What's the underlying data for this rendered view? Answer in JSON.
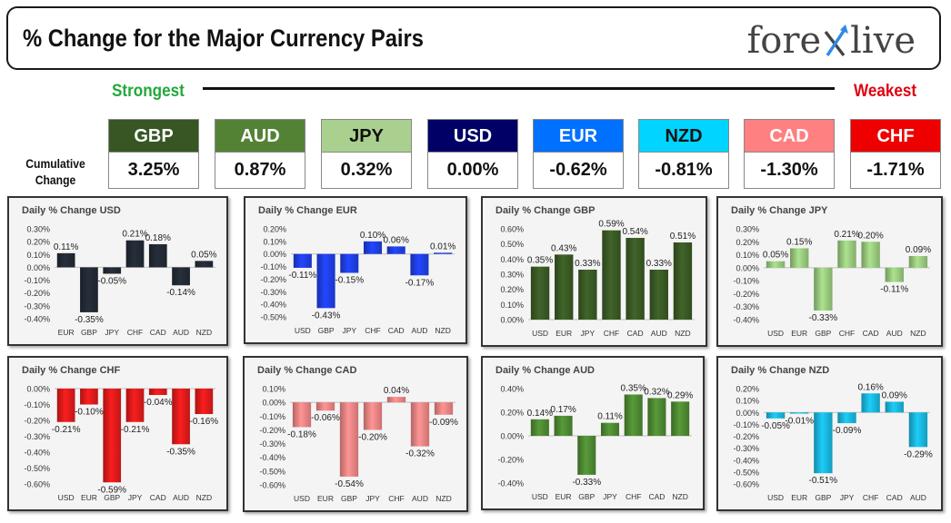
{
  "header": {
    "title": "% Change for the Major Currency Pairs",
    "logo": {
      "left": "fore",
      "right": "live"
    }
  },
  "scale": {
    "strongest_label": "Strongest",
    "weakest_label": "Weakest"
  },
  "cumulative": {
    "label_line1": "Cumulative",
    "label_line2": "Change",
    "items": [
      {
        "ccy": "GBP",
        "value": "3.25%",
        "head_bg": "#375623",
        "head_fg": "#ffffff"
      },
      {
        "ccy": "AUD",
        "value": "0.87%",
        "head_bg": "#548235",
        "head_fg": "#ffffff"
      },
      {
        "ccy": "JPY",
        "value": "0.32%",
        "head_bg": "#a9d08e",
        "head_fg": "#111111"
      },
      {
        "ccy": "USD",
        "value": "0.00%",
        "head_bg": "#000066",
        "head_fg": "#ffffff"
      },
      {
        "ccy": "EUR",
        "value": "-0.62%",
        "head_bg": "#0070ff",
        "head_fg": "#ffffff"
      },
      {
        "ccy": "NZD",
        "value": "-0.81%",
        "head_bg": "#00d4ff",
        "head_fg": "#111111"
      },
      {
        "ccy": "CAD",
        "value": "-1.30%",
        "head_bg": "#ff8080",
        "head_fg": "#ffffff"
      },
      {
        "ccy": "CHF",
        "value": "-1.71%",
        "head_bg": "#ee0000",
        "head_fg": "#ffffff"
      }
    ]
  },
  "chart_data": [
    {
      "type": "bar",
      "title": "Daily % Change USD",
      "color": "#222a35",
      "categories": [
        "EUR",
        "GBP",
        "JPY",
        "CHF",
        "CAD",
        "AUD",
        "NZD"
      ],
      "values": [
        0.11,
        -0.35,
        -0.05,
        0.21,
        0.18,
        -0.14,
        0.05
      ],
      "labels": [
        "0.11%",
        "-0.35%",
        "-0.05%",
        "0.21%",
        "0.18%",
        "-0.14%",
        "0.05%"
      ],
      "ylim": [
        -0.4,
        0.3
      ],
      "yticks": [
        0.3,
        0.2,
        0.1,
        0,
        -0.1,
        -0.2,
        -0.3,
        -0.4
      ],
      "tick_decimals": 2,
      "grid": false
    },
    {
      "type": "bar",
      "title": "Daily % Change EUR",
      "color": "#1f3fe6",
      "categories": [
        "USD",
        "GBP",
        "JPY",
        "CHF",
        "CAD",
        "AUD",
        "NZD"
      ],
      "values": [
        -0.11,
        -0.43,
        -0.15,
        0.1,
        0.06,
        -0.17,
        0.01
      ],
      "labels": [
        "-0.11%",
        "-0.43%",
        "-0.15%",
        "0.10%",
        "0.06%",
        "-0.17%",
        "0.01%"
      ],
      "ylim": [
        -0.5,
        0.2
      ],
      "yticks": [
        0.2,
        0.1,
        0,
        -0.1,
        -0.2,
        -0.3,
        -0.4,
        -0.5
      ],
      "tick_decimals": 2,
      "grid": false
    },
    {
      "type": "bar",
      "title": "Daily % Change GBP",
      "color": "#3a5a25",
      "categories": [
        "USD",
        "EUR",
        "JPY",
        "CHF",
        "CAD",
        "AUD",
        "NZD"
      ],
      "values": [
        0.35,
        0.43,
        0.33,
        0.59,
        0.54,
        0.33,
        0.51
      ],
      "labels": [
        "0.35%",
        "0.43%",
        "0.33%",
        "0.59%",
        "0.54%",
        "0.33%",
        "0.51%"
      ],
      "ylim": [
        0,
        0.6
      ],
      "yticks": [
        0.6,
        0.5,
        0.4,
        0.3,
        0.2,
        0.1,
        0
      ],
      "tick_decimals": 2,
      "grid": false
    },
    {
      "type": "bar",
      "title": "Daily % Change JPY",
      "color": "#9acb7e",
      "categories": [
        "USD",
        "EUR",
        "GBP",
        "CHF",
        "CAD",
        "AUD",
        "NZD"
      ],
      "values": [
        0.05,
        0.15,
        -0.33,
        0.21,
        0.2,
        -0.11,
        0.09
      ],
      "labels": [
        "0.05%",
        "0.15%",
        "-0.33%",
        "0.21%",
        "0.20%",
        "-0.11%",
        "0.09%"
      ],
      "ylim": [
        -0.4,
        0.3
      ],
      "yticks": [
        0.3,
        0.2,
        0.1,
        0,
        -0.1,
        -0.2,
        -0.3,
        -0.4
      ],
      "tick_decimals": 2,
      "grid": false
    },
    {
      "type": "bar",
      "title": "Daily % Change CHF",
      "color": "#e01b1b",
      "categories": [
        "USD",
        "EUR",
        "GBP",
        "JPY",
        "CAD",
        "AUD",
        "NZD"
      ],
      "values": [
        -0.21,
        -0.1,
        -0.59,
        -0.21,
        -0.04,
        -0.35,
        -0.16
      ],
      "labels": [
        "-0.21%",
        "-0.10%",
        "-0.59%",
        "-0.21%",
        "-0.04%",
        "-0.35%",
        "-0.16%"
      ],
      "ylim": [
        -0.6,
        0
      ],
      "yticks": [
        0,
        -0.1,
        -0.2,
        -0.3,
        -0.4,
        -0.5,
        -0.6
      ],
      "tick_decimals": 2,
      "grid": false
    },
    {
      "type": "bar",
      "title": "Daily % Change CAD",
      "color": "#f08585",
      "categories": [
        "USD",
        "EUR",
        "GBP",
        "JPY",
        "CHF",
        "AUD",
        "NZD"
      ],
      "values": [
        -0.18,
        -0.06,
        -0.54,
        -0.2,
        0.04,
        -0.32,
        -0.09
      ],
      "labels": [
        "-0.18%",
        "-0.06%",
        "-0.54%",
        "-0.20%",
        "0.04%",
        "-0.32%",
        "-0.09%"
      ],
      "ylim": [
        -0.6,
        0.1
      ],
      "yticks": [
        0.1,
        0,
        -0.1,
        -0.2,
        -0.3,
        -0.4,
        -0.5,
        -0.6
      ],
      "tick_decimals": 2,
      "grid": false
    },
    {
      "type": "bar",
      "title": "Daily % Change AUD",
      "color": "#4f8a33",
      "categories": [
        "USD",
        "EUR",
        "GBP",
        "JPY",
        "CHF",
        "CAD",
        "NZD"
      ],
      "values": [
        0.14,
        0.17,
        -0.33,
        0.11,
        0.35,
        0.32,
        0.29
      ],
      "labels": [
        "0.14%",
        "0.17%",
        "-0.33%",
        "0.11%",
        "0.35%",
        "0.32%",
        "0.29%"
      ],
      "ylim": [
        -0.4,
        0.4
      ],
      "yticks": [
        0.4,
        0.2,
        0,
        -0.2,
        -0.4
      ],
      "tick_decimals": 2,
      "grid": false
    },
    {
      "type": "bar",
      "title": "Daily % Change NZD",
      "color": "#19b8de",
      "categories": [
        "USD",
        "EUR",
        "GBP",
        "JPY",
        "CHF",
        "CAD",
        "AUD"
      ],
      "values": [
        -0.05,
        -0.01,
        -0.51,
        -0.09,
        0.16,
        0.09,
        -0.29
      ],
      "labels": [
        "-0.05%",
        "-0.01%",
        "-0.51%",
        "-0.09%",
        "0.16%",
        "0.09%",
        "-0.29%"
      ],
      "ylim": [
        -0.6,
        0.2
      ],
      "yticks": [
        0.2,
        0.1,
        0,
        -0.1,
        -0.2,
        -0.3,
        -0.4,
        -0.5,
        -0.6
      ],
      "tick_decimals": 2,
      "grid": false
    }
  ]
}
